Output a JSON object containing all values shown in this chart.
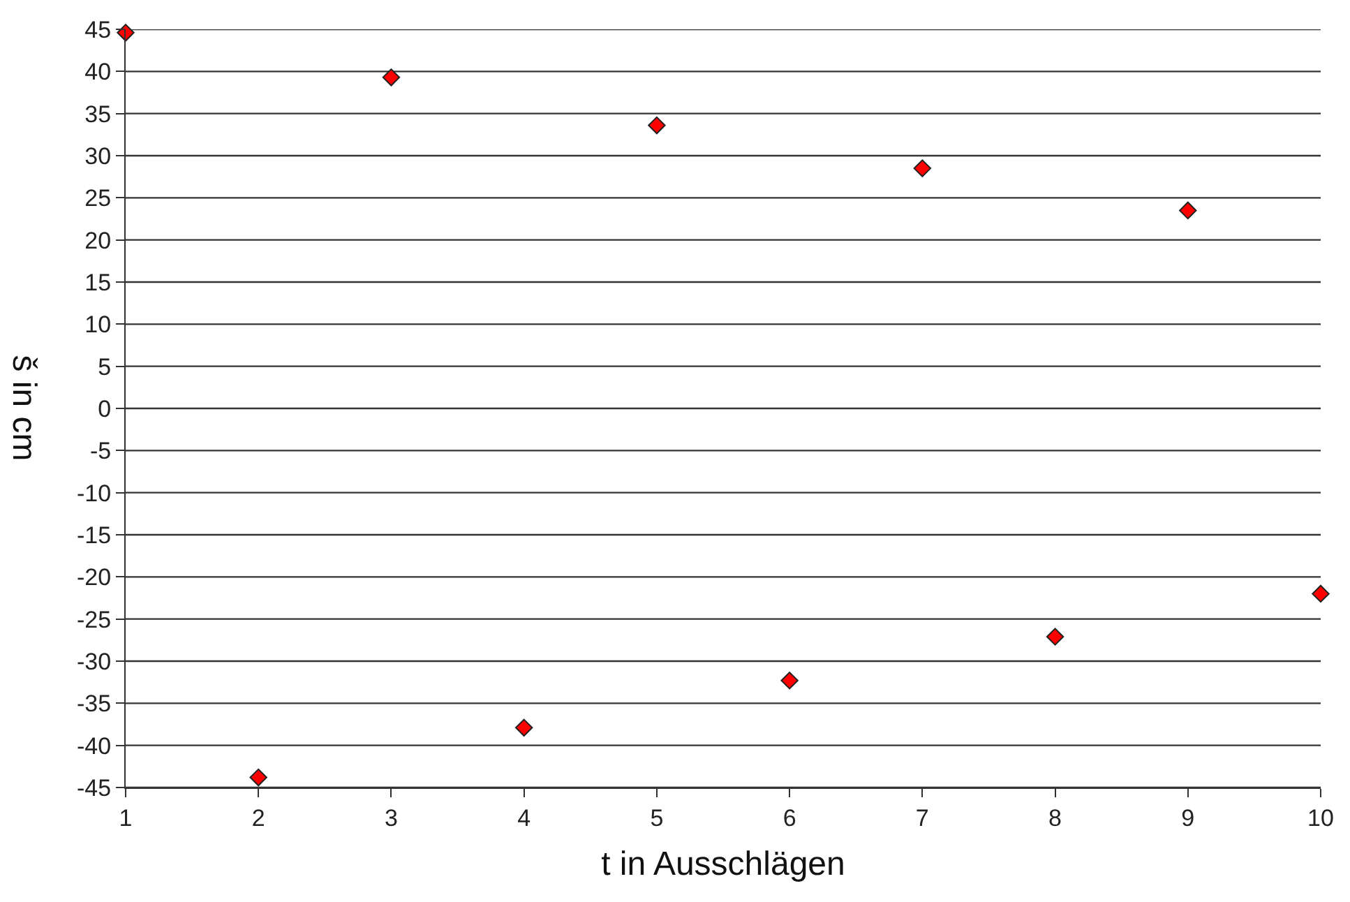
{
  "chart_data": {
    "type": "scatter",
    "xlabel": "t in Ausschlägen",
    "ylabel": "š in cm",
    "x": [
      1,
      2,
      3,
      4,
      5,
      6,
      7,
      8,
      9,
      10
    ],
    "series": [
      {
        "color": "#ff0000",
        "values": [
          44.6,
          -43.8,
          39.3,
          -37.9,
          33.6,
          -32.3,
          28.5,
          -27.1,
          23.5,
          -22.0
        ]
      }
    ],
    "xlim": [
      1,
      10
    ],
    "xticks": [
      1,
      2,
      3,
      4,
      5,
      6,
      7,
      8,
      9,
      10
    ],
    "ylim": [
      -45,
      45
    ],
    "yticks": [
      -45,
      -40,
      -35,
      -30,
      -25,
      -20,
      -15,
      -10,
      -5,
      0,
      5,
      10,
      15,
      20,
      25,
      30,
      35,
      40,
      45
    ],
    "grid": "y",
    "marker": "diamond"
  }
}
